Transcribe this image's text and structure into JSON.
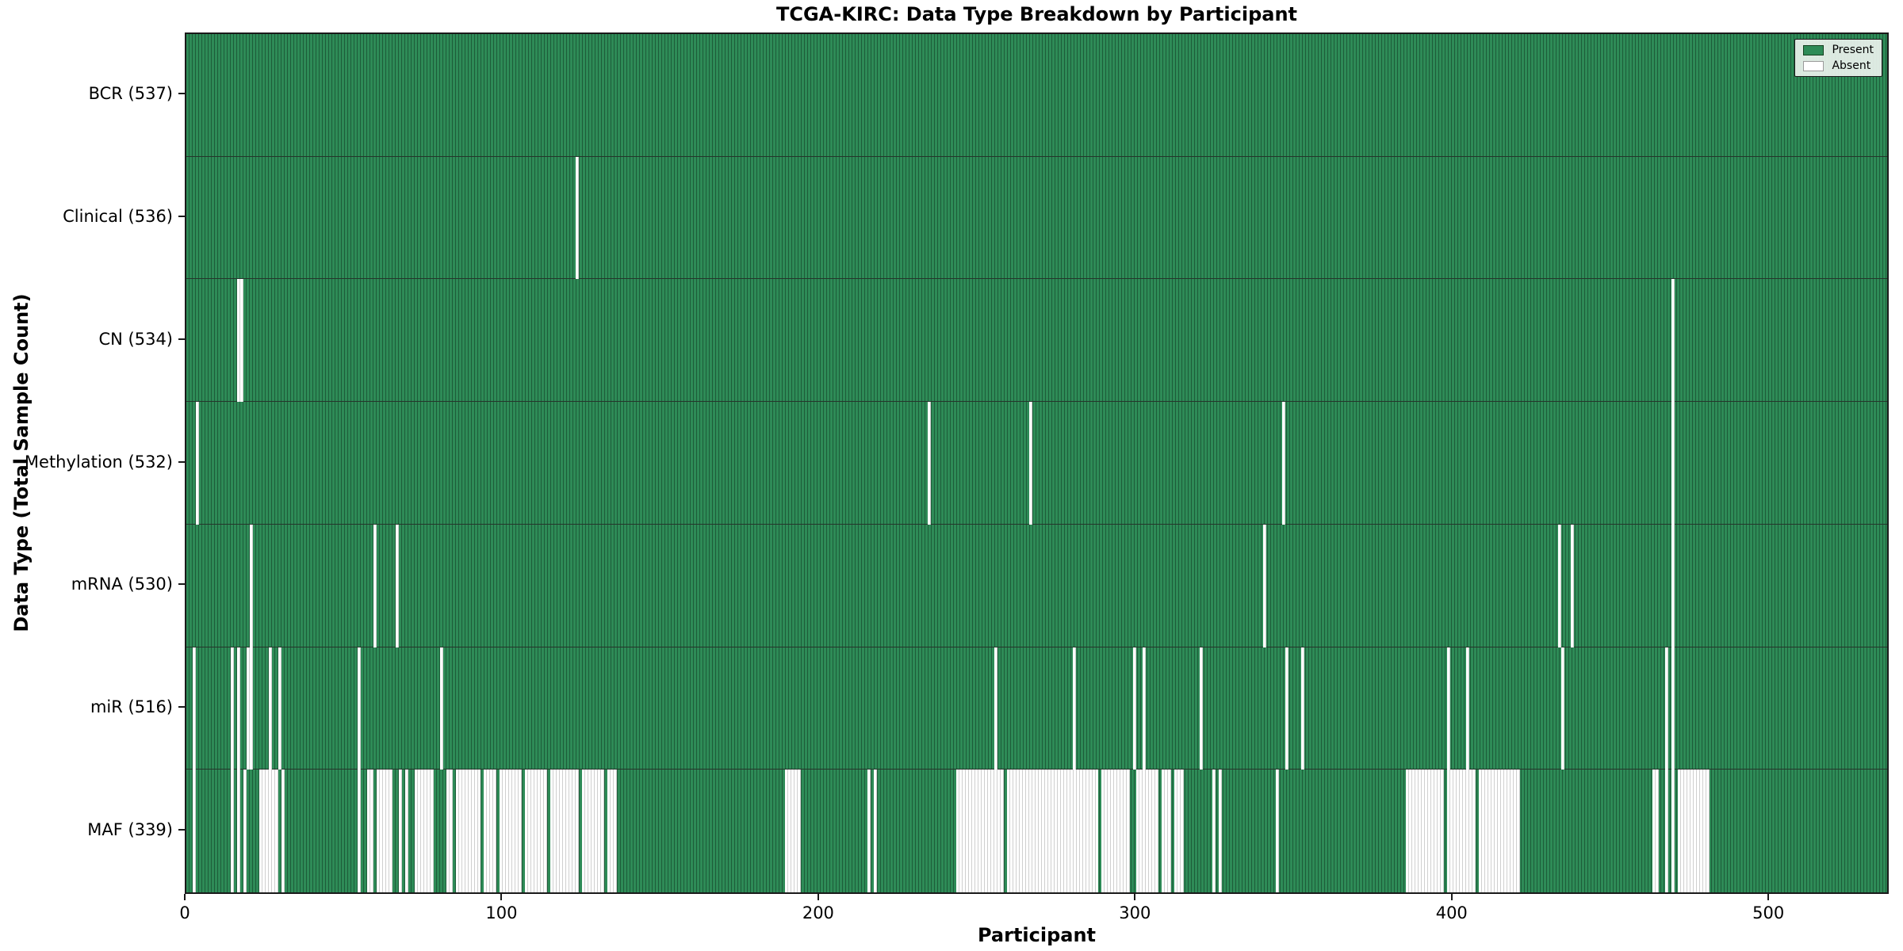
{
  "title": "TCGA-KIRC: Data Type Breakdown by Participant",
  "chart_data": {
    "type": "heatmap",
    "title": "TCGA-KIRC: Data Type Breakdown by Participant",
    "xlabel": "Participant",
    "ylabel": "Data Type (Total Sample Count)",
    "x_ticks": [
      0,
      100,
      200,
      300,
      400,
      500
    ],
    "x_max": 537,
    "grid": false,
    "legend": {
      "position": "upper right",
      "entries": [
        {
          "label": "Present",
          "color": "#2e8b57"
        },
        {
          "label": "Absent",
          "color": "#ffffff"
        }
      ]
    },
    "colors": {
      "present": "#2e8b57",
      "present_edge": "#1d5c39",
      "absent": "#ffffff",
      "absent_edge": "#cfcfcf",
      "row_divider": "#25352b",
      "axis": "#1a1a1a"
    },
    "rows": [
      {
        "data_type": "BCR",
        "label": "BCR (537)",
        "present_count": 537,
        "absent_ranges": []
      },
      {
        "data_type": "Clinical",
        "label": "Clinical (536)",
        "present_count": 536,
        "absent_ranges": [
          [
            123,
            123
          ]
        ]
      },
      {
        "data_type": "CN",
        "label": "CN (534)",
        "present_count": 534,
        "absent_ranges": [
          [
            16,
            17
          ],
          [
            469,
            469
          ]
        ]
      },
      {
        "data_type": "Methylation",
        "label": "Methylation (532)",
        "present_count": 532,
        "absent_ranges": [
          [
            3,
            3
          ],
          [
            234,
            234
          ],
          [
            266,
            266
          ],
          [
            346,
            346
          ],
          [
            469,
            469
          ]
        ]
      },
      {
        "data_type": "mRNA",
        "label": "mRNA (530)",
        "present_count": 530,
        "absent_ranges": [
          [
            20,
            20
          ],
          [
            59,
            59
          ],
          [
            66,
            66
          ],
          [
            340,
            340
          ],
          [
            433,
            433
          ],
          [
            437,
            437
          ],
          [
            469,
            469
          ]
        ]
      },
      {
        "data_type": "miR",
        "label": "miR (516)",
        "present_count": 516,
        "absent_ranges": [
          [
            2,
            2
          ],
          [
            14,
            14
          ],
          [
            16,
            16
          ],
          [
            19,
            20
          ],
          [
            26,
            26
          ],
          [
            29,
            29
          ],
          [
            54,
            54
          ],
          [
            80,
            80
          ],
          [
            255,
            255
          ],
          [
            280,
            280
          ],
          [
            299,
            299
          ],
          [
            302,
            302
          ],
          [
            320,
            320
          ],
          [
            347,
            347
          ],
          [
            352,
            352
          ],
          [
            398,
            398
          ],
          [
            404,
            404
          ],
          [
            434,
            434
          ],
          [
            467,
            467
          ],
          [
            469,
            469
          ]
        ]
      },
      {
        "data_type": "MAF",
        "label": "MAF (339)",
        "present_count": 339,
        "absent_ranges": [
          [
            2,
            2
          ],
          [
            14,
            14
          ],
          [
            16,
            16
          ],
          [
            18,
            18
          ],
          [
            23,
            28
          ],
          [
            30,
            30
          ],
          [
            54,
            54
          ],
          [
            57,
            58
          ],
          [
            60,
            64
          ],
          [
            67,
            67
          ],
          [
            69,
            69
          ],
          [
            72,
            77
          ],
          [
            82,
            83
          ],
          [
            85,
            92
          ],
          [
            94,
            97
          ],
          [
            99,
            105
          ],
          [
            107,
            113
          ],
          [
            115,
            123
          ],
          [
            125,
            131
          ],
          [
            133,
            135
          ],
          [
            189,
            193
          ],
          [
            215,
            215
          ],
          [
            217,
            217
          ],
          [
            243,
            257
          ],
          [
            259,
            287
          ],
          [
            289,
            297
          ],
          [
            300,
            306
          ],
          [
            308,
            310
          ],
          [
            312,
            314
          ],
          [
            324,
            324
          ],
          [
            326,
            326
          ],
          [
            344,
            344
          ],
          [
            385,
            396
          ],
          [
            398,
            406
          ],
          [
            408,
            420
          ],
          [
            463,
            464
          ],
          [
            467,
            467
          ],
          [
            469,
            469
          ],
          [
            471,
            480
          ]
        ]
      }
    ]
  }
}
